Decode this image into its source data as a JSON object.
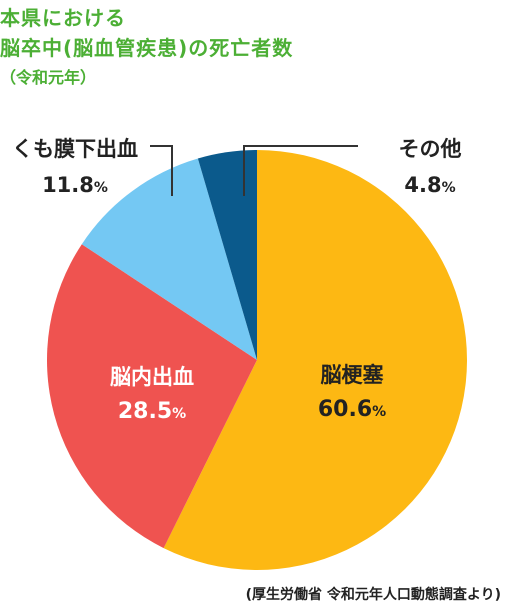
{
  "title": {
    "line1": "本県における",
    "line2": "脳卒中(脳血管疾患)の死亡者数",
    "line3": "（令和元年）"
  },
  "source": "(厚生労働省 令和元年人口動態調査より)",
  "chart_data": {
    "type": "pie",
    "title": "本県における脳卒中(脳血管疾患)の死亡者数（令和元年）",
    "unit": "%",
    "slices": [
      {
        "name": "脳梗塞",
        "value": 60.6,
        "display": "60.6",
        "color": "#fdb813",
        "text_color": "#222222"
      },
      {
        "name": "脳内出血",
        "value": 28.5,
        "display": "28.5",
        "color": "#ef5350",
        "text_color": "#ffffff"
      },
      {
        "name": "くも膜下出血",
        "value": 11.8,
        "display": "11.8",
        "color": "#74c8f3",
        "text_color": "#222222"
      },
      {
        "name": "その他",
        "value": 4.8,
        "display": "4.8",
        "color": "#0b5a8c",
        "text_color": "#222222"
      }
    ]
  }
}
